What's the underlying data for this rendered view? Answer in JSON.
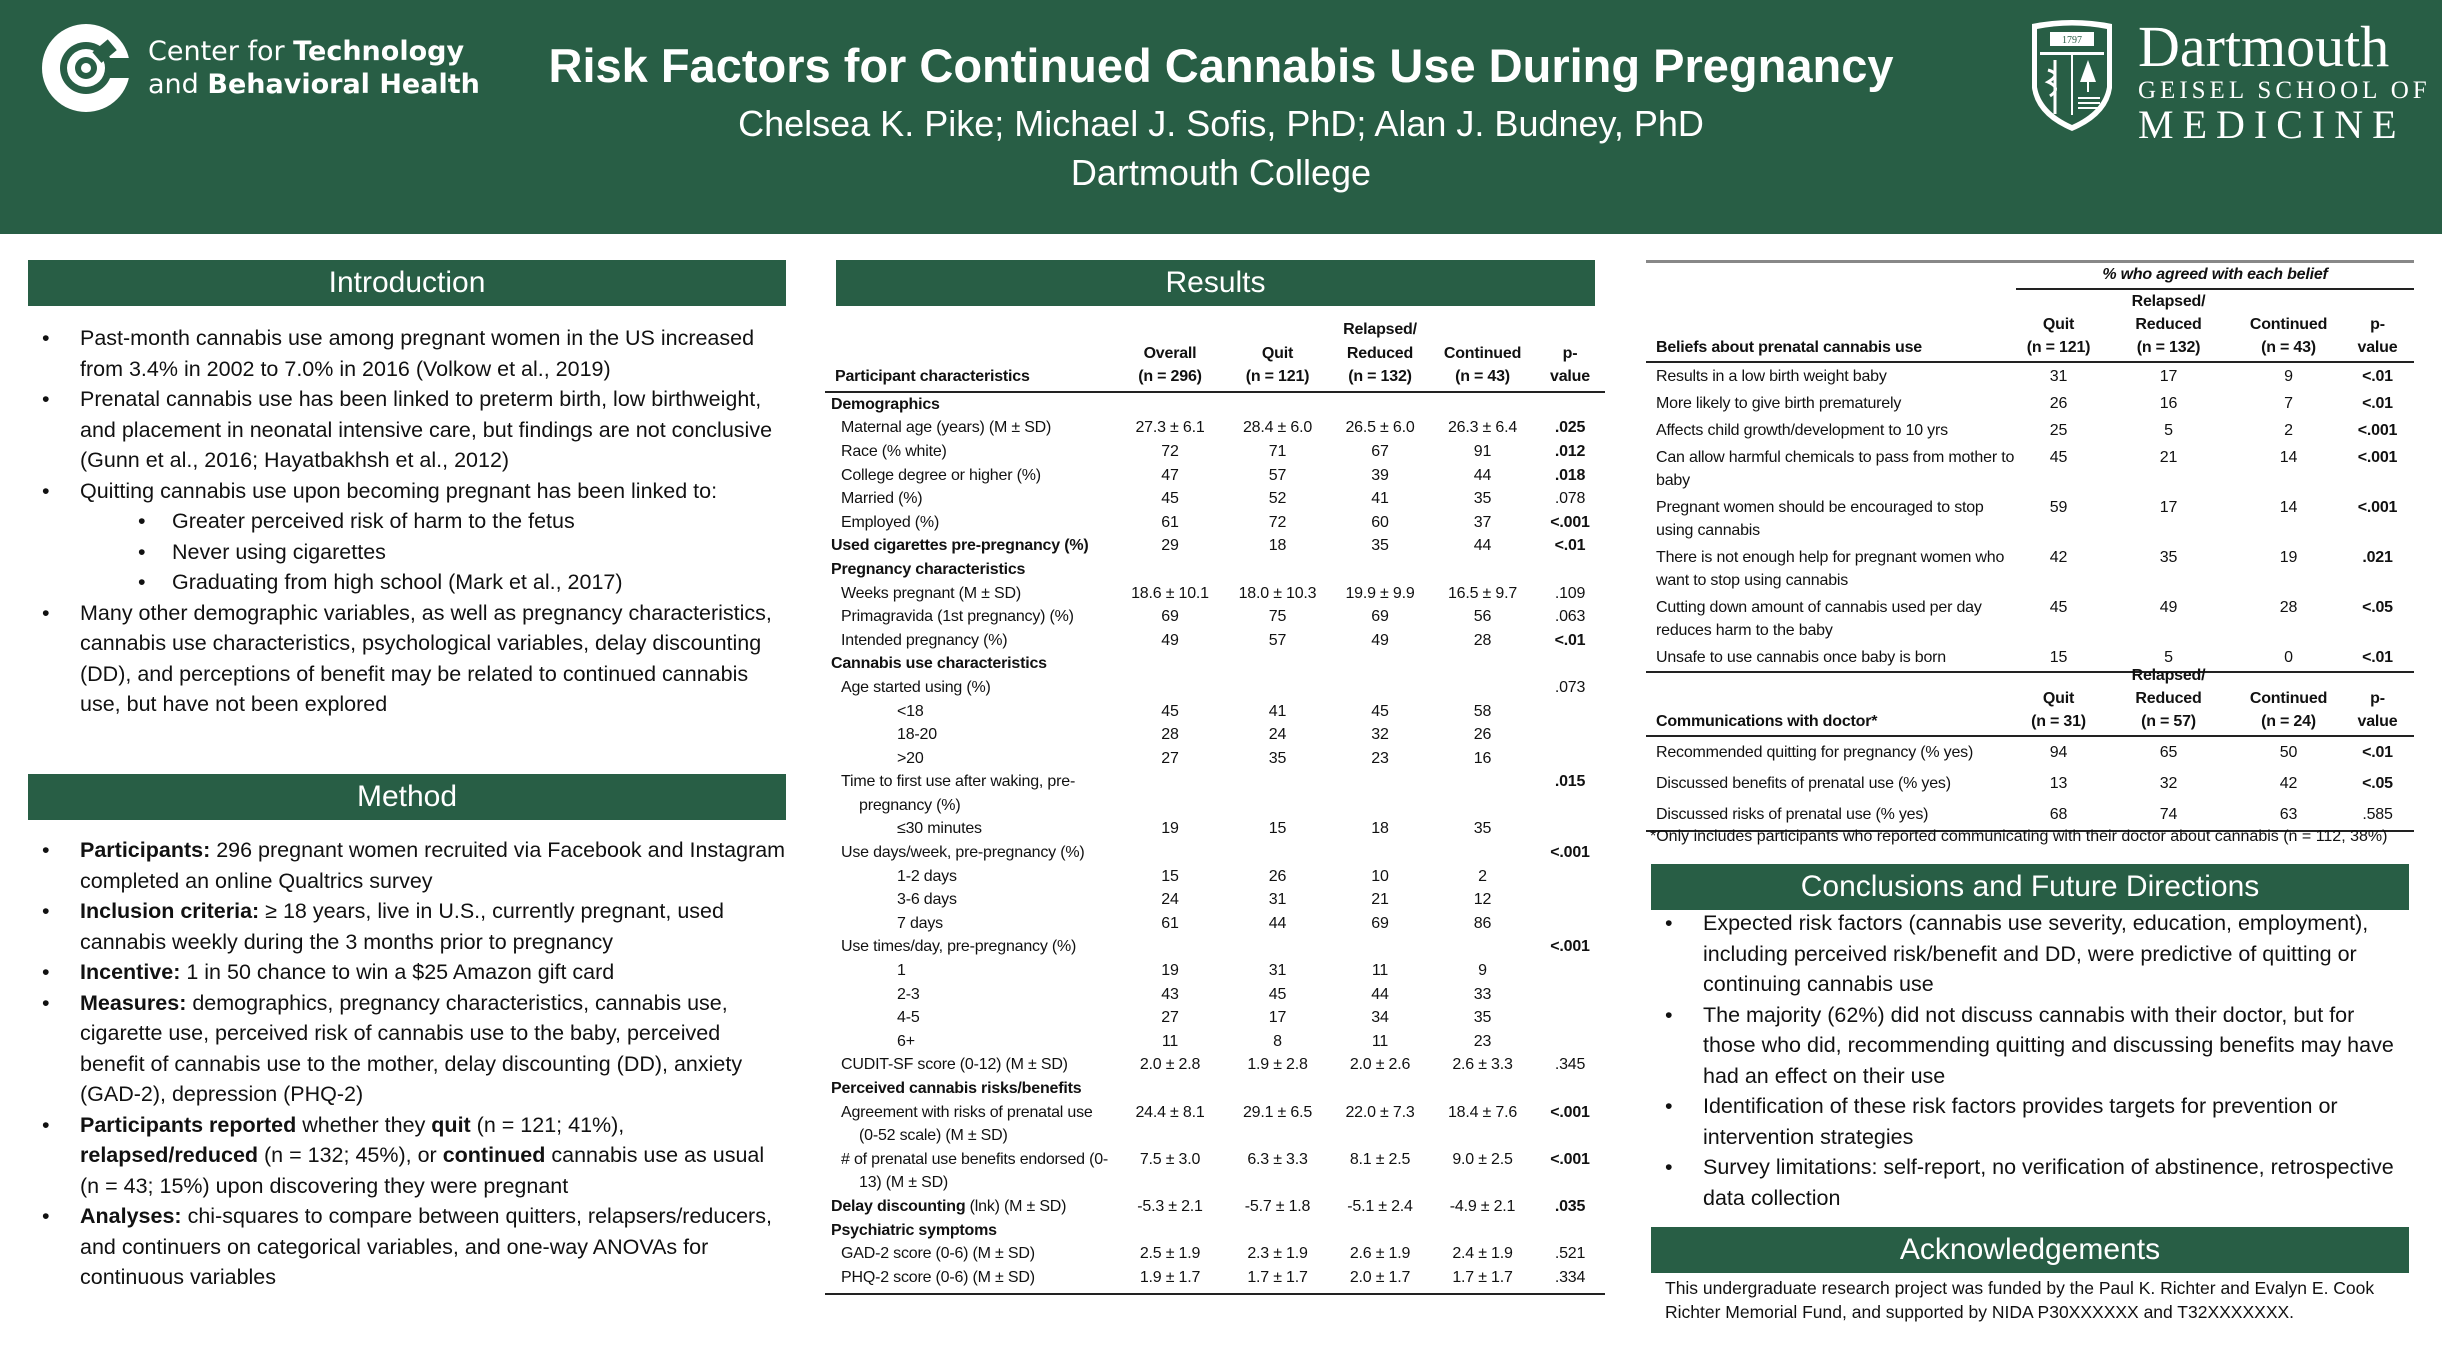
{
  "colors": {
    "brand_green": "#285e45",
    "text": "#111111"
  },
  "header": {
    "ctbh_logo": {
      "line1_light": "Center for ",
      "line1_bold": "Technology",
      "line2_light": "and ",
      "line2_bold": "Behavioral Health",
      "icon": "ctbh-c-logo-icon"
    },
    "title": "Risk Factors for Continued Cannabis Use During Pregnancy",
    "authors": "Chelsea K. Pike; Michael J. Sofis, PhD; Alan J. Budney, PhD",
    "institution": "Dartmouth College",
    "dartmouth_logo": {
      "seal_year": "1797",
      "word1": "Dartmouth",
      "word2": "GEISEL SCHOOL OF",
      "word3": "MEDICINE",
      "icon": "dartmouth-shield-icon"
    }
  },
  "introduction": {
    "heading": "Introduction",
    "bullets": [
      {
        "segments": [
          {
            "t": "Past-month cannabis use among pregnant women in the US increased from 3.4% in 2002 to 7.0% in 2016 (Volkow et al., 2019)"
          }
        ]
      },
      {
        "segments": [
          {
            "t": "Prenatal cannabis use has been linked to preterm birth, low birthweight, and placement in neonatal intensive care, but findings are not conclusive (Gunn et al., 2016; Hayatbakhsh et al., 2012)"
          }
        ]
      },
      {
        "segments": [
          {
            "t": "Quitting cannabis use upon becoming pregnant has been linked to:"
          }
        ],
        "sub": [
          "Greater perceived risk of harm to the fetus",
          "Never using cigarettes",
          "Graduating from high school (Mark et al., 2017)"
        ]
      },
      {
        "segments": [
          {
            "t": "Many other demographic variables, as well as pregnancy characteristics, cannabis use characteristics, psychological variables, delay discounting (DD), and perceptions of benefit may be related to continued cannabis use, but have not been explored"
          }
        ]
      }
    ]
  },
  "method": {
    "heading": "Method",
    "bullets": [
      {
        "segments": [
          {
            "t": "Participants:",
            "b": true
          },
          {
            "t": " 296 pregnant women recruited via Facebook and Instagram completed an online Qualtrics survey"
          }
        ]
      },
      {
        "segments": [
          {
            "t": "Inclusion criteria:",
            "b": true
          },
          {
            "t": " ≥ 18 years, live in U.S., currently pregnant, used cannabis weekly during the 3 months prior to pregnancy"
          }
        ]
      },
      {
        "segments": [
          {
            "t": "Incentive:",
            "b": true
          },
          {
            "t": " 1 in 50 chance to win a $25 Amazon gift card"
          }
        ]
      },
      {
        "segments": [
          {
            "t": "Measures:",
            "b": true
          },
          {
            "t": " demographics, pregnancy characteristics, cannabis use, cigarette use, perceived risk of cannabis use to the baby, perceived benefit of cannabis use to the mother, delay discounting (DD), anxiety (GAD-2), depression (PHQ-2)"
          }
        ]
      },
      {
        "segments": [
          {
            "t": "Participants reported",
            "b": true
          },
          {
            "t": " whether they "
          },
          {
            "t": "quit",
            "b": true
          },
          {
            "t": " (n = 121; 41%), "
          },
          {
            "t": "relapsed/reduced",
            "b": true
          },
          {
            "t": " (n = 132; 45%), or "
          },
          {
            "t": "continued",
            "b": true
          },
          {
            "t": " cannabis use as usual (n = 43; 15%) upon discovering they were pregnant"
          }
        ]
      },
      {
        "segments": [
          {
            "t": "Analyses:",
            "b": true
          },
          {
            "t": " chi-squares to compare between quitters, relapsers/reducers, and continuers on categorical variables, and one-way ANOVAs for continuous variables"
          }
        ]
      }
    ]
  },
  "results": {
    "heading": "Results",
    "table": {
      "label_header": "Participant characteristics",
      "columns": [
        "Overall\n(n = 296)",
        "Quit\n(n = 121)",
        "Relapsed/\nReduced\n(n = 132)",
        "Continued\n(n = 43)",
        "p-\nvalue"
      ],
      "rows": [
        {
          "type": "section",
          "label": "Demographics"
        },
        {
          "type": "item",
          "label": "Maternal age (years) (M ± SD)",
          "values": [
            "27.3 ± 6.1",
            "28.4 ± 6.0",
            "26.5 ± 6.0",
            "26.3 ± 6.4"
          ],
          "p": ".025"
        },
        {
          "type": "item",
          "label": "Race (% white)",
          "values": [
            "72",
            "71",
            "67",
            "91"
          ],
          "p": ".012"
        },
        {
          "type": "item",
          "label": "College degree or higher (%)",
          "values": [
            "47",
            "57",
            "39",
            "44"
          ],
          "p": ".018"
        },
        {
          "type": "item",
          "label": "Married (%)",
          "values": [
            "45",
            "52",
            "41",
            "35"
          ],
          "p": ".078"
        },
        {
          "type": "item",
          "label": "Employed (%)",
          "values": [
            "61",
            "72",
            "60",
            "37"
          ],
          "p": "<.001"
        },
        {
          "type": "section",
          "label": "Used cigarettes pre-pregnancy (%)",
          "values": [
            "29",
            "18",
            "35",
            "44"
          ],
          "p": "<.01"
        },
        {
          "type": "section",
          "label": "Pregnancy characteristics"
        },
        {
          "type": "item",
          "label": "Weeks pregnant (M ± SD)",
          "values": [
            "18.6 ± 10.1",
            "18.0 ± 10.3",
            "19.9 ± 9.9",
            "16.5 ± 9.7"
          ],
          "p": ".109"
        },
        {
          "type": "item",
          "label": "Primagravida (1st pregnancy) (%)",
          "values": [
            "69",
            "75",
            "69",
            "56"
          ],
          "p": ".063"
        },
        {
          "type": "item",
          "label": "Intended pregnancy (%)",
          "values": [
            "49",
            "57",
            "49",
            "28"
          ],
          "p": "<.01"
        },
        {
          "type": "section",
          "label": "Cannabis use characteristics"
        },
        {
          "type": "item",
          "label": "Age started using (%)",
          "p": ".073"
        },
        {
          "type": "sub",
          "label": "<18",
          "values": [
            "45",
            "41",
            "45",
            "58"
          ]
        },
        {
          "type": "sub",
          "label": "18-20",
          "values": [
            "28",
            "24",
            "32",
            "26"
          ]
        },
        {
          "type": "sub",
          "label": ">20",
          "values": [
            "27",
            "35",
            "23",
            "16"
          ]
        },
        {
          "type": "item",
          "label": "Time to first use after waking, pre-pregnancy (%)",
          "p": ".015"
        },
        {
          "type": "sub",
          "label": "≤30 minutes",
          "values": [
            "19",
            "15",
            "18",
            "35"
          ]
        },
        {
          "type": "item",
          "label": "Use days/week, pre-pregnancy (%)",
          "p": "<.001"
        },
        {
          "type": "sub",
          "label": "1-2 days",
          "values": [
            "15",
            "26",
            "10",
            "2"
          ]
        },
        {
          "type": "sub",
          "label": "3-6 days",
          "values": [
            "24",
            "31",
            "21",
            "12"
          ]
        },
        {
          "type": "sub",
          "label": "7 days",
          "values": [
            "61",
            "44",
            "69",
            "86"
          ]
        },
        {
          "type": "item",
          "label": "Use times/day, pre-pregnancy (%)",
          "p": "<.001"
        },
        {
          "type": "sub",
          "label": "1",
          "values": [
            "19",
            "31",
            "11",
            "9"
          ]
        },
        {
          "type": "sub",
          "label": "2-3",
          "values": [
            "43",
            "45",
            "44",
            "33"
          ]
        },
        {
          "type": "sub",
          "label": "4-5",
          "values": [
            "27",
            "17",
            "34",
            "35"
          ]
        },
        {
          "type": "sub",
          "label": "6+",
          "values": [
            "11",
            "8",
            "11",
            "23"
          ]
        },
        {
          "type": "item",
          "label": "CUDIT-SF score (0-12) (M ± SD)",
          "values": [
            "2.0 ± 2.8",
            "1.9 ± 2.8",
            "2.0 ± 2.6",
            "2.6 ± 3.3"
          ],
          "p": ".345"
        },
        {
          "type": "section",
          "label": "Perceived cannabis risks/benefits"
        },
        {
          "type": "item",
          "label": "Agreement with risks of prenatal use (0-52 scale) (M ± SD)",
          "values": [
            "24.4 ± 8.1",
            "29.1 ± 6.5",
            "22.0 ± 7.3",
            "18.4 ± 7.6"
          ],
          "p": "<.001"
        },
        {
          "type": "item",
          "label": "# of prenatal use benefits endorsed (0-13) (M ± SD)",
          "values": [
            "7.5 ± 3.0",
            "6.3 ± 3.3",
            "8.1 ± 2.5",
            "9.0 ± 2.5"
          ],
          "p": "<.001"
        },
        {
          "type": "section",
          "label": "Delay discounting",
          "label_rest": " (lnk) (M ± SD)",
          "values": [
            "-5.3 ± 2.1",
            "-5.7 ± 1.8",
            "-5.1 ± 2.4",
            "-4.9 ± 2.1"
          ],
          "p": ".035"
        },
        {
          "type": "section",
          "label": "Psychiatric symptoms"
        },
        {
          "type": "item",
          "label": "GAD-2 score (0-6) (M ± SD)",
          "values": [
            "2.5 ± 1.9",
            "2.3 ± 1.9",
            "2.6 ± 1.9",
            "2.4 ± 1.9"
          ],
          "p": ".521"
        },
        {
          "type": "item",
          "label": "PHQ-2 score (0-6) (M ± SD)",
          "values": [
            "1.9 ± 1.7",
            "1.7 ± 1.7",
            "2.0 ± 1.7",
            "1.7 ± 1.7"
          ],
          "p": ".334"
        }
      ]
    }
  },
  "beliefs": {
    "group_header": "% who agreed with each belief",
    "label_header": "Beliefs about prenatal cannabis use",
    "columns": [
      "Quit\n(n = 121)",
      "Relapsed/\nReduced\n(n = 132)",
      "Continued\n(n = 43)",
      "p-\nvalue"
    ],
    "rows": [
      {
        "label": "Results in a low birth weight baby",
        "values": [
          "31",
          "17",
          "9"
        ],
        "p": "<.01"
      },
      {
        "label": "More likely to give birth prematurely",
        "values": [
          "26",
          "16",
          "7"
        ],
        "p": "<.01"
      },
      {
        "label": "Affects child growth/development to 10 yrs",
        "values": [
          "25",
          "5",
          "2"
        ],
        "p": "<.001"
      },
      {
        "label": "Can allow harmful chemicals to pass from mother to baby",
        "values": [
          "45",
          "21",
          "14"
        ],
        "p": "<.001"
      },
      {
        "label": "Pregnant women should be encouraged to stop using cannabis",
        "values": [
          "59",
          "17",
          "14"
        ],
        "p": "<.001"
      },
      {
        "label": "There is not enough help for pregnant women who want to stop using cannabis",
        "values": [
          "42",
          "35",
          "19"
        ],
        "p": ".021"
      },
      {
        "label": "Cutting down amount of cannabis used per day reduces harm to the baby",
        "values": [
          "45",
          "49",
          "28"
        ],
        "p": "<.05"
      },
      {
        "label": "Unsafe to use cannabis once baby is born",
        "values": [
          "15",
          "5",
          "0"
        ],
        "p": "<.01"
      }
    ]
  },
  "communications": {
    "label_header": "Communications with doctor*",
    "columns": [
      "Quit\n(n = 31)",
      "Relapsed/\nReduced\n(n = 57)",
      "Continued\n(n = 24)",
      "p-\nvalue"
    ],
    "rows": [
      {
        "label": "Recommended quitting for pregnancy (% yes)",
        "values": [
          "94",
          "65",
          "50"
        ],
        "p": "<.01"
      },
      {
        "label": "Discussed benefits of prenatal use (% yes)",
        "values": [
          "13",
          "32",
          "42"
        ],
        "p": "<.05"
      },
      {
        "label": "Discussed risks of prenatal use (% yes)",
        "values": [
          "68",
          "74",
          "63"
        ],
        "p": ".585"
      }
    ],
    "footnote": "*Only includes participants who reported communicating with their doctor about cannabis (n = 112, 38%)"
  },
  "conclusions": {
    "heading": "Conclusions and Future Directions",
    "bullets": [
      {
        "segments": [
          {
            "t": "Expected risk factors (cannabis use severity, education, employment), including perceived risk/benefit and DD, were predictive of quitting or continuing cannabis use"
          }
        ]
      },
      {
        "segments": [
          {
            "t": "The majority (62%) did not discuss cannabis with their doctor, but for those who did, recommending quitting and discussing benefits may have had an effect on their use"
          }
        ]
      },
      {
        "segments": [
          {
            "t": "Identification of these risk factors provides targets for prevention or intervention strategies"
          }
        ]
      },
      {
        "segments": [
          {
            "t": "Survey limitations: self-report, no verification of abstinence, retrospective data collection"
          }
        ]
      }
    ]
  },
  "acknowledgements": {
    "heading": "Acknowledgements",
    "text": "This undergraduate research project was funded by the Paul K. Richter and Evalyn E. Cook Richter Memorial Fund, and supported by NIDA P30XXXXXX and T32XXXXXXX."
  }
}
